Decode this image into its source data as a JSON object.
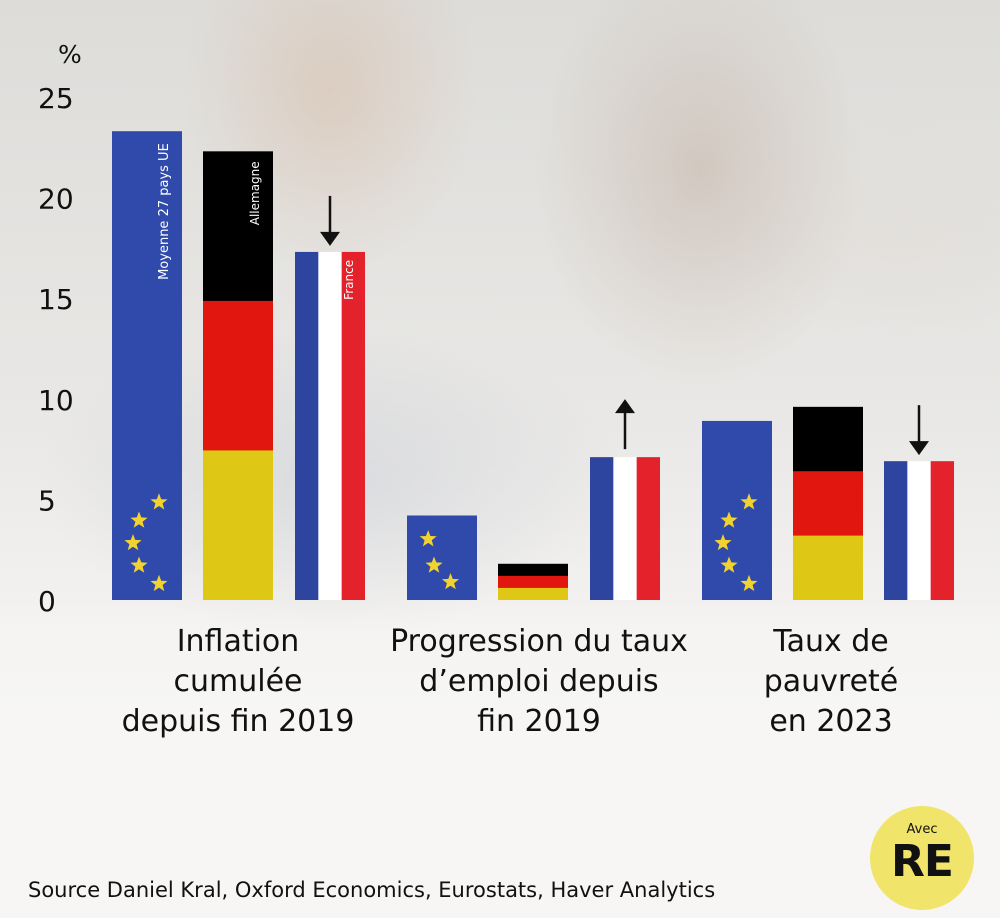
{
  "chart_data": {
    "type": "bar",
    "ylabel": "%",
    "ylim": [
      0,
      25
    ],
    "yticks": [
      0,
      5,
      10,
      15,
      20,
      25
    ],
    "grid": false,
    "groups": [
      {
        "label": "Inflation\ncumulée\ndepuis fin 2019",
        "bars": [
          {
            "name": "Moyenne 27 pays UE",
            "flag": "eu",
            "value": 23.3
          },
          {
            "name": "Allemagne",
            "flag": "de",
            "value": 22.3
          },
          {
            "name": "France",
            "flag": "fr",
            "value": 17.3,
            "arrow": "down"
          }
        ]
      },
      {
        "label": "Progression du taux\nd’emploi depuis\nfin 2019",
        "bars": [
          {
            "flag": "eu",
            "value": 4.2
          },
          {
            "flag": "de",
            "value": 1.8
          },
          {
            "flag": "fr",
            "value": 7.1,
            "arrow": "up"
          }
        ]
      },
      {
        "label": "Taux de\npauvreté\nen 2023",
        "bars": [
          {
            "flag": "eu",
            "value": 8.9
          },
          {
            "flag": "de",
            "value": 9.6
          },
          {
            "flag": "fr",
            "value": 6.9,
            "arrow": "down"
          }
        ]
      }
    ]
  },
  "colors": {
    "eu_blue": "#2f4aaa",
    "eu_star": "#f2d22e",
    "de_black": "#000000",
    "de_red": "#e1170f",
    "de_gold": "#dec815",
    "fr_blue": "#2e45a0",
    "fr_white": "#ffffff",
    "fr_red": "#e3222b"
  },
  "source": "Source Daniel Kral, Oxford Economics, Eurostats, Haver Analytics",
  "logo": {
    "small": "Avec",
    "big": "RE"
  }
}
